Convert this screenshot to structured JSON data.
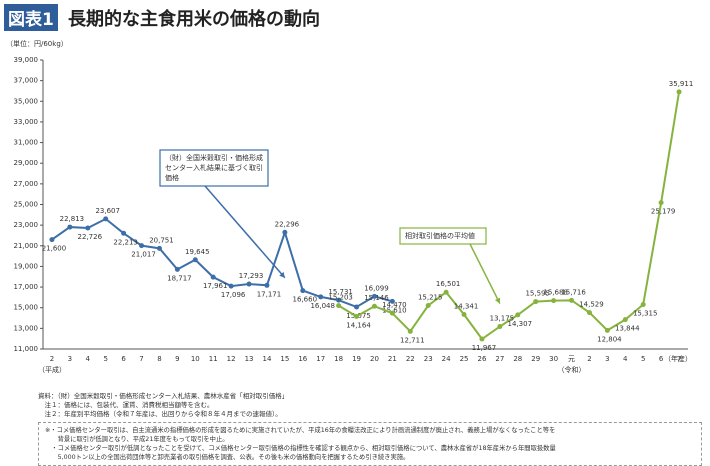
{
  "header": {
    "badge": "図表1",
    "title": "長期的な主食用米の価格の動向"
  },
  "chart_data": {
    "type": "line",
    "unit_label": "（単位：円/60kg）",
    "x_unit": "（年産）",
    "era_labels": [
      {
        "index": 0,
        "text": "（平成）"
      },
      {
        "index": 29,
        "text": "（令和）"
      }
    ],
    "categories": [
      "2",
      "3",
      "4",
      "5",
      "6",
      "7",
      "8",
      "9",
      "10",
      "11",
      "12",
      "13",
      "14",
      "15",
      "16",
      "17",
      "18",
      "19",
      "20",
      "21",
      "22",
      "23",
      "24",
      "25",
      "26",
      "27",
      "28",
      "29",
      "30",
      "元",
      "2",
      "3",
      "4",
      "5",
      "6",
      "7"
    ],
    "series": [
      {
        "color": "#3d6ea8",
        "values": [
          21600,
          22813,
          22726,
          23607,
          22213,
          21017,
          20751,
          18717,
          19645,
          17961,
          17096,
          17293,
          17171,
          22296,
          16660,
          16048,
          15731,
          15075,
          16099,
          15610,
          null,
          null,
          null,
          null,
          null,
          null,
          null,
          null,
          null,
          null,
          null,
          null,
          null,
          null,
          null,
          null
        ],
        "value_labels": [
          "21,600",
          "22,813",
          "22,726",
          "23,607",
          "22,213",
          "21,017",
          "20,751",
          "18,717",
          "19,645",
          "17,961",
          "17,096",
          "17,293",
          "17,171",
          "22,296",
          "16,660",
          "16,048",
          "15,731",
          "15,075",
          "16,099",
          "15,610",
          null,
          null,
          null,
          null,
          null,
          null,
          null,
          null,
          null,
          null,
          null,
          null,
          null,
          null,
          null,
          null
        ]
      },
      {
        "color": "#86b33e",
        "values": [
          null,
          null,
          null,
          null,
          null,
          null,
          null,
          null,
          null,
          null,
          null,
          null,
          null,
          null,
          null,
          null,
          15203,
          14164,
          15146,
          14470,
          12711,
          15215,
          16501,
          14341,
          11967,
          13175,
          14307,
          15595,
          15688,
          15716,
          14529,
          12804,
          13844,
          15315,
          25179,
          35911
        ],
        "value_labels": [
          null,
          null,
          null,
          null,
          null,
          null,
          null,
          null,
          null,
          null,
          null,
          null,
          null,
          null,
          null,
          null,
          "15,203",
          "14,164",
          "15,146",
          "14,470",
          "12,711",
          "15,215",
          "16,501",
          "14,341",
          "11,967",
          "13,175",
          "14,307",
          "15,595",
          "15,688",
          "15,716",
          "14,529",
          "12,804",
          "13,844",
          "15,315",
          "25,179",
          "35,911"
        ]
      }
    ],
    "annotations": [
      {
        "lines": [
          "（財）全国米穀取引・価格形成",
          "センター入札結果に基づく取引",
          "価格"
        ],
        "color": "#3d6ea8"
      },
      {
        "lines": [
          "相対取引価格の平均値"
        ],
        "color": "#86b33e"
      }
    ],
    "ylim": [
      11000,
      39000
    ],
    "yticks": [
      {
        "value": 11000,
        "label": "11,000"
      },
      {
        "value": 13000,
        "label": "13,000"
      },
      {
        "value": 15000,
        "label": "15,000"
      },
      {
        "value": 17000,
        "label": "17,000"
      },
      {
        "value": 19000,
        "label": "19,000"
      },
      {
        "value": 21000,
        "label": "21,000"
      },
      {
        "value": 23000,
        "label": "23,000"
      },
      {
        "value": 25000,
        "label": "25,000"
      },
      {
        "value": 27000,
        "label": "27,000"
      },
      {
        "value": 29000,
        "label": "29,000"
      },
      {
        "value": 31000,
        "label": "31,000"
      },
      {
        "value": 33000,
        "label": "33,000"
      },
      {
        "value": 35000,
        "label": "35,000"
      },
      {
        "value": 37000,
        "label": "37,000"
      },
      {
        "value": 39000,
        "label": "39,000"
      }
    ],
    "grid": false
  },
  "notes": [
    "資料：（財）全国米穀取引・価格形成センター入札結果、農林水産省「相対取引価格」",
    "　注１：価格には、包装代、運賃、消費税相当額等を含む。",
    "　注２：年産別平均価格（令和７年産は、出回りから令和８年４月までの速報値）。"
  ],
  "box_notes": [
    "※・コメ価格センター取引は、自主流通米の指標価格の形成を図るために実施されていたが、平成16年の食糧法改正により計画流通制度が廃止され、義務上場がなくなったこと等を",
    "　　背景に取引が低調となり、平成21年度をもって取引を中止。",
    "　・コメ価格センター取引が低調となったことを受けて、コメ価格センター取引価格の指標性を確認する観点から、相対取引価格について、農林水産省が18年産米から年間取扱数量",
    "　　5,000トン以上の全国出荷団体等と卸売業者の取引価格を調査、公表。その後も米の価格動向を把握するため引き続き実施。"
  ]
}
